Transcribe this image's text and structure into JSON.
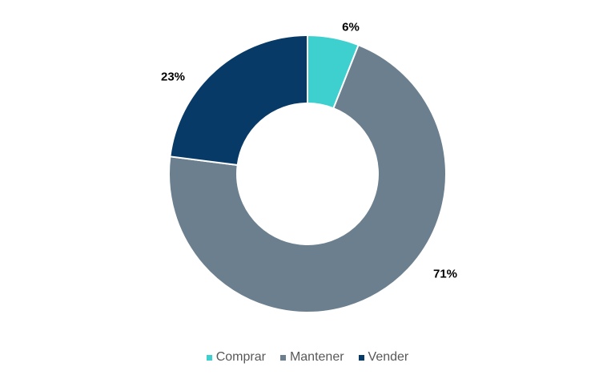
{
  "chart_data": {
    "type": "pie",
    "subtype": "donut",
    "title": "",
    "categories": [
      "Comprar",
      "Mantener",
      "Vender"
    ],
    "values": [
      6,
      71,
      23
    ],
    "unit": "%",
    "labels": [
      "6%",
      "71%",
      "23%"
    ],
    "colors": [
      "#3ECFCF",
      "#6B7F8E",
      "#073A66"
    ],
    "legend_position": "bottom"
  },
  "legend": {
    "items": [
      {
        "label": "Comprar",
        "color": "#3ECFCF"
      },
      {
        "label": "Mantener",
        "color": "#6B7F8E"
      },
      {
        "label": "Vender",
        "color": "#073A66"
      }
    ]
  }
}
